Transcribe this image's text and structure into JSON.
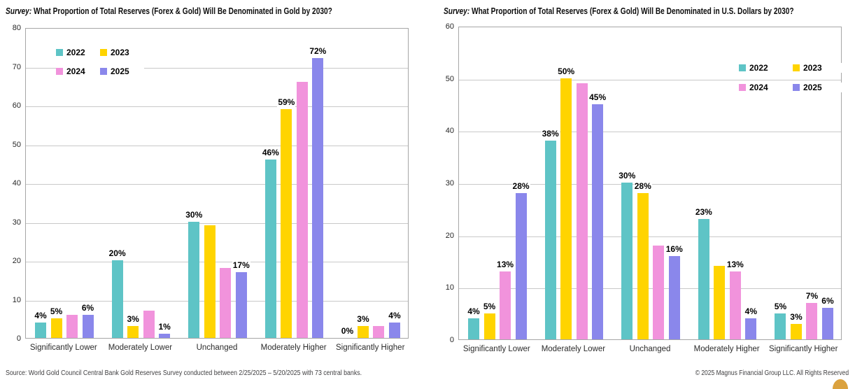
{
  "colors": {
    "grid": "#c9c9c9",
    "plot_border": "#a6a6a6",
    "data_label": "#000000",
    "axis_text": "#262626",
    "category_text": "#2b2b2b",
    "footer_text": "#414042",
    "logo_orange": "#dba23e"
  },
  "chart_data": [
    {
      "type": "bar",
      "title_prefix": "Survey:",
      "title_rest": " What Proportion of Total Reserves (Forex & Gold) Will Be Denominated in Gold by 2030?",
      "categories": [
        "Significantly Lower",
        "Moderately Lower",
        "Unchanged",
        "Moderately Higher",
        "Significantly Higher"
      ],
      "series": [
        {
          "name": "2022",
          "color": "#5ec4c6",
          "values": [
            4,
            20,
            30,
            46,
            0
          ],
          "labels": [
            "4%",
            "20%",
            "30%",
            "46%",
            "0%"
          ]
        },
        {
          "name": "2023",
          "color": "#ffd400",
          "values": [
            5,
            3,
            29,
            59,
            3
          ],
          "labels": [
            "5%",
            "3%",
            "",
            "59%",
            "3%"
          ]
        },
        {
          "name": "2024",
          "color": "#f193dc",
          "values": [
            6,
            7,
            18,
            66,
            3
          ],
          "labels": [
            "",
            "",
            "",
            "",
            ""
          ]
        },
        {
          "name": "2025",
          "color": "#8a87eb",
          "values": [
            6,
            1,
            17,
            72,
            4
          ],
          "labels": [
            "6%",
            "1%",
            "17%",
            "72%",
            "4%"
          ]
        }
      ],
      "ylim": [
        0,
        80
      ],
      "yticks": [
        0,
        10,
        20,
        30,
        40,
        50,
        60,
        70,
        80
      ],
      "grid": "on",
      "legend_position": "top-left",
      "legend_rows": [
        [
          "2022",
          "2023"
        ],
        [
          "2024",
          "2025"
        ]
      ]
    },
    {
      "type": "bar",
      "title_prefix": "Survey:",
      "title_rest": " What Proportion of Total Reserves (Forex & Gold) Will Be Denominated in U.S. Dollars by 2030?",
      "categories": [
        "Significantly Lower",
        "Moderately Lower",
        "Unchanged",
        "Moderately Higher",
        "Significantly Higher"
      ],
      "series": [
        {
          "name": "2022",
          "color": "#5ec4c6",
          "values": [
            4,
            38,
            30,
            23,
            5
          ],
          "labels": [
            "4%",
            "38%",
            "30%",
            "23%",
            "5%"
          ]
        },
        {
          "name": "2023",
          "color": "#ffd400",
          "values": [
            5,
            50,
            28,
            14,
            3
          ],
          "labels": [
            "5%",
            "50%",
            "28%",
            "",
            "3%"
          ]
        },
        {
          "name": "2024",
          "color": "#f193dc",
          "values": [
            13,
            49,
            18,
            13,
            7
          ],
          "labels": [
            "13%",
            "",
            "",
            "13%",
            "7%"
          ]
        },
        {
          "name": "2025",
          "color": "#8a87eb",
          "values": [
            28,
            45,
            16,
            4,
            6
          ],
          "labels": [
            "28%",
            "45%",
            "16%",
            "4%",
            "6%"
          ]
        }
      ],
      "ylim": [
        0,
        60
      ],
      "yticks": [
        0,
        10,
        20,
        30,
        40,
        50,
        60
      ],
      "grid": "on",
      "legend_position": "top-right",
      "legend_rows": [
        [
          "2022",
          "2023"
        ],
        [
          "2024",
          "2025"
        ]
      ]
    }
  ],
  "footer": {
    "source": "Source: World Gold Council Central Bank Gold Reserves Survey conducted between 2/25/2025 – 5/20/2025 with 73 central banks.",
    "copyright": "© 2025 Magnus Financial Group LLC. All Rights Reserved",
    "logo": "magnus-partial-circle-logo"
  }
}
